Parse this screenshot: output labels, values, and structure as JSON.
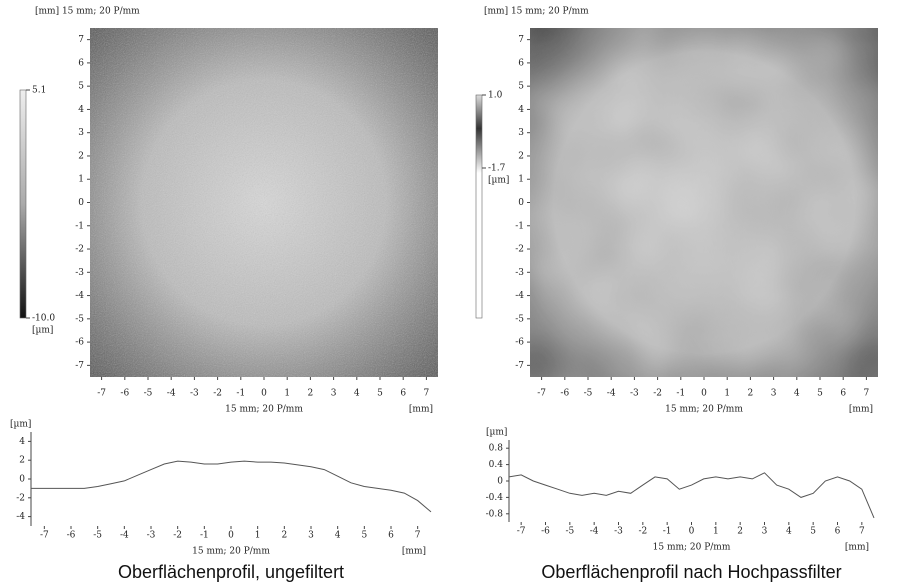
{
  "chart_data": [
    {
      "type": "heatmap",
      "title": "[mm] 15 mm; 20 P/mm",
      "xlabel": "15 mm; 20 P/mm",
      "xunit": "[mm]",
      "xlim": [
        -7.5,
        7.5
      ],
      "ylim": [
        -7.5,
        7.5
      ],
      "xticks": [
        -7,
        -6,
        -5,
        -4,
        -3,
        -2,
        -1,
        0,
        1,
        2,
        3,
        4,
        5,
        6,
        7
      ],
      "yticks": [
        7,
        6,
        5,
        4,
        3,
        2,
        1,
        0,
        -1,
        -2,
        -3,
        -4,
        -5,
        -6,
        -7
      ],
      "zlim": [
        {
          "value": -10,
          "label": "-10.0"
        },
        5.1
      ],
      "zunit": "[µm]"
    },
    {
      "type": "heatmap",
      "title": "[mm] 15 mm; 20 P/mm",
      "xlabel": "15 mm; 20 P/mm",
      "xunit": "[mm]",
      "xlim": [
        -7.5,
        7.5
      ],
      "ylim": [
        -7.5,
        7.5
      ],
      "xticks": [
        -7,
        -6,
        -5,
        -4,
        -3,
        -2,
        -1,
        0,
        1,
        2,
        3,
        4,
        5,
        6,
        7
      ],
      "yticks": [
        7,
        6,
        5,
        4,
        3,
        2,
        1,
        0,
        -1,
        -2,
        -3,
        -4,
        -5,
        -6,
        -7
      ],
      "zlim": [
        -1.7,
        {
          "value": 1,
          "label": "1.0"
        }
      ],
      "zunit": "[µm]"
    },
    {
      "type": "line",
      "ylabel": "[µm]",
      "xlabel": "15 mm; 20 P/mm",
      "xunit": "[mm]",
      "caption": "Oberflächenprofil, ungefiltert",
      "xlim": [
        -7.5,
        7.5
      ],
      "ylim": [
        -5,
        5
      ],
      "xticks": [
        -7,
        -6,
        -5,
        -4,
        -3,
        -2,
        -1,
        0,
        1,
        2,
        3,
        4,
        5,
        6,
        7
      ],
      "yticks": [
        4,
        2,
        0,
        -2,
        -4
      ],
      "x": [
        -7.5,
        -7,
        -6.5,
        -6,
        -5.5,
        -5,
        -4.5,
        -4,
        -3.5,
        -3,
        -2.5,
        -2,
        -1.5,
        -1,
        -0.5,
        0,
        0.5,
        1,
        1.5,
        2,
        2.5,
        3,
        3.5,
        4,
        4.5,
        5,
        5.5,
        6,
        6.5,
        7,
        7.5
      ],
      "values": [
        -1,
        -1,
        -1,
        -1,
        -1,
        -0.8,
        -0.5,
        -0.2,
        0.4,
        1,
        1.6,
        1.9,
        1.8,
        1.6,
        1.6,
        1.8,
        1.9,
        1.8,
        1.8,
        1.7,
        1.5,
        1.3,
        1,
        0.3,
        -0.4,
        -0.8,
        -1,
        -1.2,
        -1.5,
        -2.3,
        -3.5
      ],
      "color": "#555555"
    },
    {
      "type": "line",
      "ylabel": "[µm]",
      "xlabel": "15 mm; 20 P/mm",
      "xunit": "[mm]",
      "caption": "Oberflächenprofil nach Hochpassfilter",
      "xlim": [
        -7.5,
        7.5
      ],
      "ylim": [
        -1,
        1
      ],
      "xticks": [
        -7,
        -6,
        -5,
        -4,
        -3,
        -2,
        -1,
        0,
        1,
        2,
        3,
        4,
        5,
        6,
        7
      ],
      "yticks": [
        0.8,
        0.4,
        0,
        -0.4,
        -0.8
      ],
      "x": [
        -7.5,
        -7,
        -6.5,
        -6,
        -5.5,
        -5,
        -4.5,
        -4,
        -3.5,
        -3,
        -2.5,
        -2,
        -1.5,
        -1,
        -0.5,
        0,
        0.5,
        1,
        1.5,
        2,
        2.5,
        3,
        3.5,
        4,
        4.5,
        5,
        5.5,
        6,
        6.5,
        7,
        7.5
      ],
      "values": [
        0.1,
        0.15,
        0,
        -0.1,
        -0.2,
        -0.3,
        -0.35,
        -0.3,
        -0.35,
        -0.25,
        -0.3,
        -0.1,
        0.1,
        0.05,
        -0.2,
        -0.1,
        0.05,
        0.1,
        0.05,
        0.1,
        0.05,
        0.2,
        -0.1,
        -0.2,
        -0.4,
        -0.3,
        0,
        0.1,
        0,
        -0.2,
        -0.9
      ],
      "color": "#555555"
    }
  ]
}
